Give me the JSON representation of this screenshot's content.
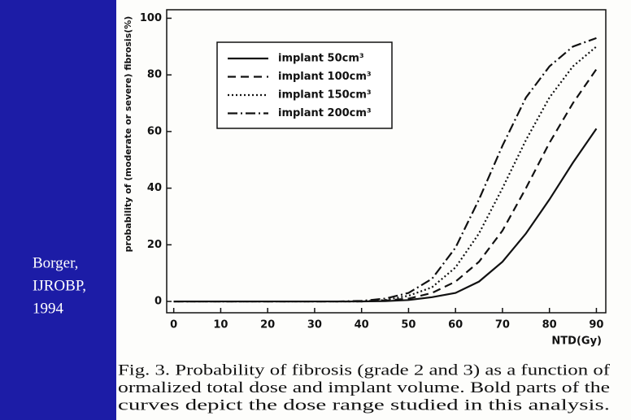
{
  "chart_data": {
    "type": "line",
    "y_label": "probability of (moderate or severe) fibrosis(%)",
    "x_label": "NTD(Gy)",
    "x": [
      0,
      5,
      10,
      15,
      20,
      25,
      30,
      35,
      40,
      45,
      50,
      55,
      60,
      65,
      70,
      75,
      80,
      85,
      90
    ],
    "series": [
      {
        "name": "implant  50cm³",
        "color": "#111111",
        "dash": "none",
        "values": [
          0,
          0,
          0,
          0,
          0,
          0,
          0,
          0,
          0,
          0.1,
          0.5,
          1.5,
          3,
          7,
          14,
          24,
          36,
          49,
          61
        ]
      },
      {
        "name": "implant  100cm³",
        "color": "#111111",
        "dash": "10 6",
        "values": [
          0,
          0,
          0,
          0,
          0,
          0,
          0,
          0,
          0,
          0.3,
          1,
          3,
          7,
          14,
          25,
          40,
          56,
          70,
          82
        ]
      },
      {
        "name": "implant  150cm³",
        "color": "#111111",
        "dash": "2 3",
        "values": [
          0,
          0,
          0,
          0,
          0,
          0,
          0,
          0,
          0,
          0.5,
          2,
          5,
          12,
          24,
          40,
          57,
          72,
          83,
          90
        ]
      },
      {
        "name": "implant  200cm³",
        "color": "#111111",
        "dash": "12 4 2 4",
        "values": [
          0,
          0,
          0,
          0,
          0,
          0,
          0,
          0,
          0.2,
          1,
          3,
          8,
          19,
          36,
          55,
          72,
          83,
          90,
          93
        ]
      }
    ],
    "xlim": [
      -1.5,
      92
    ],
    "ylim": [
      -4,
      103
    ],
    "xticks": [
      0,
      10,
      20,
      30,
      40,
      50,
      60,
      70,
      80,
      90
    ],
    "yticks": [
      0,
      20,
      40,
      60,
      80,
      100
    ],
    "legend": "top-left",
    "caption": [
      "Fig. 3. Probability of fibrosis (grade 2 and 3) as a function of",
      "ormalized total dose and implant volume. Bold parts of the",
      "curves depict the dose range studied in this analysis."
    ],
    "source": [
      "Borger,",
      "IJROBP,",
      "1994"
    ]
  }
}
